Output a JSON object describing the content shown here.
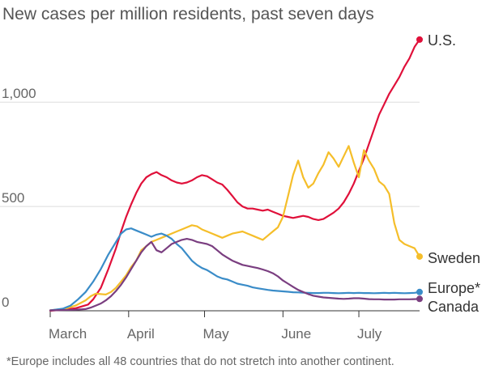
{
  "chart_data": {
    "type": "line",
    "title": "New cases per million residents, past seven days",
    "xlabel": "",
    "ylabel": "",
    "x_unit": "day",
    "xlim": [
      0,
      146
    ],
    "ylim": [
      0,
      1350
    ],
    "y_ticks": [
      {
        "value": 0,
        "label": "0"
      },
      {
        "value": 500,
        "label": "500"
      },
      {
        "value": 1000,
        "label": "1,000"
      }
    ],
    "x_ticks": [
      {
        "value": 0,
        "label": "March"
      },
      {
        "value": 31,
        "label": "April"
      },
      {
        "value": 61,
        "label": "May"
      },
      {
        "value": 92,
        "label": "June"
      },
      {
        "value": 122,
        "label": "July"
      }
    ],
    "grid": true,
    "legend": "direct labels at right end of each line",
    "footnote": "*Europe includes all 48 countries that do not stretch into another continent.",
    "series": [
      {
        "name": "U.S.",
        "label": "U.S.",
        "color": "#e0103a",
        "x": [
          0,
          5,
          10,
          15,
          17,
          20,
          23,
          26,
          28,
          30,
          32,
          34,
          36,
          38,
          40,
          42,
          44,
          46,
          48,
          50,
          52,
          54,
          56,
          58,
          60,
          62,
          64,
          66,
          68,
          70,
          72,
          74,
          76,
          78,
          80,
          82,
          84,
          86,
          88,
          90,
          92,
          94,
          96,
          98,
          100,
          102,
          104,
          106,
          108,
          110,
          112,
          114,
          116,
          118,
          120,
          122,
          124,
          126,
          128,
          130,
          132,
          134,
          136,
          138,
          140,
          142,
          144,
          146
        ],
        "values": [
          0,
          5,
          12,
          30,
          55,
          110,
          200,
          300,
          380,
          450,
          510,
          565,
          610,
          640,
          655,
          665,
          650,
          640,
          625,
          615,
          610,
          615,
          625,
          640,
          650,
          645,
          630,
          615,
          605,
          580,
          550,
          520,
          500,
          490,
          490,
          485,
          480,
          485,
          475,
          465,
          455,
          450,
          445,
          450,
          455,
          450,
          440,
          435,
          440,
          455,
          470,
          490,
          520,
          560,
          610,
          670,
          730,
          800,
          870,
          940,
          990,
          1040,
          1080,
          1120,
          1170,
          1210,
          1265,
          1300
        ]
      },
      {
        "name": "Sweden",
        "label": "Sweden",
        "color": "#f5be2a",
        "x": [
          0,
          6,
          10,
          14,
          16,
          18,
          20,
          22,
          24,
          26,
          28,
          30,
          32,
          34,
          36,
          38,
          40,
          42,
          44,
          46,
          48,
          50,
          52,
          54,
          56,
          58,
          60,
          62,
          64,
          66,
          68,
          70,
          72,
          74,
          76,
          78,
          80,
          82,
          84,
          86,
          88,
          90,
          92,
          94,
          96,
          98,
          100,
          102,
          104,
          106,
          108,
          110,
          112,
          114,
          116,
          118,
          120,
          122,
          124,
          126,
          128,
          130,
          132,
          134,
          136,
          138,
          140,
          142,
          144,
          146
        ],
        "values": [
          2,
          10,
          25,
          50,
          70,
          82,
          80,
          78,
          90,
          110,
          140,
          170,
          210,
          240,
          290,
          310,
          330,
          340,
          350,
          360,
          370,
          380,
          390,
          400,
          410,
          405,
          390,
          380,
          370,
          360,
          350,
          360,
          370,
          375,
          380,
          370,
          360,
          350,
          340,
          360,
          380,
          400,
          450,
          550,
          650,
          720,
          640,
          590,
          610,
          660,
          700,
          760,
          730,
          690,
          740,
          790,
          710,
          640,
          770,
          720,
          680,
          620,
          600,
          560,
          420,
          340,
          320,
          310,
          300,
          260
        ]
      },
      {
        "name": "Europe",
        "label": "Europe*",
        "color": "#3a8cc8",
        "x": [
          0,
          5,
          8,
          11,
          14,
          17,
          20,
          23,
          26,
          28,
          30,
          32,
          34,
          36,
          38,
          40,
          42,
          44,
          46,
          48,
          50,
          52,
          54,
          56,
          58,
          60,
          62,
          64,
          66,
          68,
          70,
          72,
          74,
          76,
          78,
          80,
          82,
          84,
          86,
          88,
          90,
          92,
          94,
          96,
          98,
          100,
          102,
          104,
          106,
          108,
          110,
          112,
          114,
          116,
          118,
          120,
          122,
          124,
          126,
          128,
          130,
          132,
          134,
          136,
          138,
          140,
          142,
          144,
          146
        ],
        "values": [
          2,
          10,
          25,
          55,
          90,
          140,
          200,
          270,
          330,
          370,
          390,
          395,
          385,
          375,
          365,
          355,
          365,
          370,
          360,
          345,
          320,
          300,
          270,
          240,
          220,
          205,
          195,
          180,
          165,
          155,
          150,
          140,
          130,
          125,
          120,
          112,
          108,
          104,
          100,
          97,
          95,
          93,
          91,
          89,
          88,
          87,
          86,
          85,
          85,
          86,
          86,
          85,
          84,
          85,
          86,
          85,
          86,
          85,
          85,
          84,
          85,
          86,
          85,
          86,
          85,
          84,
          85,
          86,
          90
        ]
      },
      {
        "name": "Canada",
        "label": "Canada",
        "color": "#7a3e80",
        "x": [
          0,
          10,
          14,
          16,
          18,
          20,
          22,
          24,
          26,
          28,
          30,
          32,
          34,
          36,
          38,
          40,
          42,
          44,
          46,
          48,
          50,
          52,
          54,
          56,
          58,
          60,
          62,
          64,
          66,
          68,
          70,
          72,
          74,
          76,
          78,
          80,
          82,
          84,
          86,
          88,
          90,
          92,
          94,
          96,
          98,
          100,
          102,
          104,
          106,
          108,
          110,
          112,
          114,
          116,
          118,
          120,
          122,
          124,
          126,
          128,
          130,
          132,
          134,
          136,
          138,
          140,
          142,
          144,
          146
        ],
        "values": [
          2,
          5,
          8,
          15,
          25,
          35,
          50,
          70,
          95,
          125,
          160,
          200,
          240,
          280,
          310,
          330,
          290,
          280,
          300,
          320,
          330,
          340,
          345,
          340,
          330,
          325,
          320,
          310,
          290,
          270,
          255,
          240,
          230,
          220,
          215,
          210,
          205,
          198,
          190,
          180,
          165,
          145,
          130,
          115,
          100,
          90,
          80,
          72,
          68,
          64,
          62,
          60,
          58,
          57,
          58,
          60,
          60,
          58,
          56,
          55,
          55,
          54,
          54,
          54,
          55,
          55,
          55,
          56,
          57
        ]
      }
    ]
  }
}
